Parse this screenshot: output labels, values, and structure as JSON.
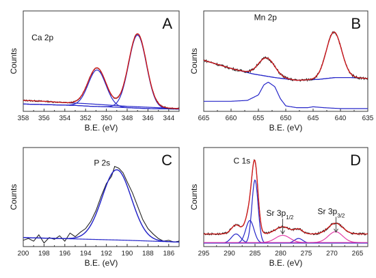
{
  "colors": {
    "exp": "#222222",
    "fit": "#d01a1a",
    "comp": "#2424c8",
    "pink": "#e23ca8",
    "axis": "#333333"
  },
  "chart_data": [
    {
      "type": "line",
      "letter": "A",
      "xlabel": "B.E. (eV)",
      "ylabel": "Counts",
      "xlim": [
        358,
        343
      ],
      "ylim": [
        0,
        1.1
      ],
      "xticks": [
        358,
        356,
        354,
        352,
        350,
        348,
        346,
        344
      ],
      "annotations": [
        {
          "text": "Ca 2p",
          "x": 357.2,
          "y": 0.78
        }
      ],
      "backgrounds": [
        {
          "color": "comp",
          "points": [
            [
              358,
              0.08
            ],
            [
              353,
              0.065
            ],
            [
              351.5,
              0.055
            ],
            [
              350,
              0.05
            ],
            [
              348,
              0.04
            ],
            [
              346,
              0.03
            ],
            [
              343,
              0.025
            ]
          ]
        },
        {
          "color": "comp",
          "points": [
            [
              358,
              0.12
            ],
            [
              356,
              0.11
            ],
            [
              354,
              0.095
            ],
            [
              352,
              0.085
            ],
            [
              350,
              0.07
            ],
            [
              348,
              0.055
            ],
            [
              346,
              0.045
            ],
            [
              344,
              0.035
            ],
            [
              343,
              0.03
            ]
          ]
        }
      ],
      "peaks": [
        {
          "center": 350.9,
          "height": 0.4,
          "width": 0.85,
          "color": "comp"
        },
        {
          "center": 347.0,
          "height": 0.8,
          "width": 0.85,
          "color": "comp"
        }
      ],
      "envelope": {
        "color": "fit",
        "components": "all",
        "bg": 1
      },
      "experimental": {
        "color": "exp",
        "noise": 0.008,
        "bg": 1
      }
    },
    {
      "type": "line",
      "letter": "B",
      "xlabel": "B.E. (eV)",
      "ylabel": "Counts",
      "xlim": [
        665,
        635
      ],
      "ylim": [
        0,
        1.1
      ],
      "xticks": [
        665,
        660,
        655,
        650,
        645,
        640,
        635
      ],
      "annotations": [
        {
          "text": "Mn 2p",
          "x": 655.8,
          "y": 1.0
        }
      ],
      "backgrounds": [
        {
          "color": "comp",
          "points": [
            [
              665,
              0.56
            ],
            [
              660,
              0.47
            ],
            [
              656,
              0.41
            ],
            [
              652,
              0.37
            ],
            [
              648,
              0.34
            ],
            [
              644,
              0.35
            ],
            [
              641,
              0.37
            ],
            [
              638,
              0.37
            ],
            [
              635,
              0.36
            ]
          ]
        }
      ],
      "peaks": [
        {
          "center": 653.5,
          "height": 0.2,
          "width": 1.5,
          "color": "comp"
        },
        {
          "center": 641.2,
          "height": 0.5,
          "width": 1.4,
          "color": "comp"
        }
      ],
      "extra_curves": [
        {
          "color": "comp",
          "points": [
            [
              665,
              0.11
            ],
            [
              660,
              0.11
            ],
            [
              657,
              0.12
            ],
            [
              655,
              0.18
            ],
            [
              654,
              0.29
            ],
            [
              653.2,
              0.32
            ],
            [
              652,
              0.27
            ],
            [
              651,
              0.14
            ],
            [
              650,
              0.06
            ],
            [
              648,
              0.04
            ],
            [
              646,
              0.04
            ],
            [
              645,
              0.05
            ],
            [
              643,
              0.04
            ],
            [
              640,
              0.03
            ],
            [
              635,
              0.03
            ]
          ]
        }
      ],
      "envelope": {
        "color": "fit",
        "components": "all",
        "bg": 0
      },
      "experimental": {
        "color": "exp",
        "noise": 0.014,
        "bg": 0
      }
    },
    {
      "type": "line",
      "letter": "C",
      "xlabel": "B.E. (eV)",
      "ylabel": "Counts",
      "xlim": [
        200,
        185
      ],
      "ylim": [
        0,
        1.1
      ],
      "xticks": [
        200,
        198,
        196,
        194,
        192,
        190,
        188,
        186
      ],
      "annotations": [
        {
          "text": "P 2s",
          "x": 193.2,
          "y": 0.9
        }
      ],
      "backgrounds": [
        {
          "color": "comp",
          "points": [
            [
              200,
              0.1
            ],
            [
              195,
              0.085
            ],
            [
              190,
              0.07
            ],
            [
              185,
              0.05
            ]
          ]
        }
      ],
      "peaks": [
        {
          "center": 191.0,
          "height": 0.78,
          "width": 1.4,
          "color": "comp"
        }
      ],
      "envelope": {
        "color": "comp",
        "components": "all",
        "bg": 0
      },
      "experimental": {
        "color": "exp",
        "points": [
          [
            200,
            0.07
          ],
          [
            199.5,
            0.09
          ],
          [
            199,
            0.06
          ],
          [
            198.5,
            0.13
          ],
          [
            198,
            0.04
          ],
          [
            197.5,
            0.1
          ],
          [
            197,
            0.08
          ],
          [
            196.5,
            0.12
          ],
          [
            196,
            0.06
          ],
          [
            195.5,
            0.15
          ],
          [
            195,
            0.11
          ],
          [
            194.5,
            0.16
          ],
          [
            194,
            0.2
          ],
          [
            193.5,
            0.28
          ],
          [
            193,
            0.4
          ],
          [
            192.5,
            0.56
          ],
          [
            192,
            0.7
          ],
          [
            191.5,
            0.78
          ],
          [
            191.2,
            0.89
          ],
          [
            190.8,
            0.87
          ],
          [
            190.4,
            0.82
          ],
          [
            190,
            0.72
          ],
          [
            189.5,
            0.6
          ],
          [
            189,
            0.45
          ],
          [
            188.5,
            0.3
          ],
          [
            188,
            0.2
          ],
          [
            187.5,
            0.14
          ],
          [
            187,
            0.09
          ],
          [
            186.5,
            0.06
          ],
          [
            186,
            0.07
          ],
          [
            185.5,
            0.05
          ],
          [
            185,
            0.06
          ]
        ]
      }
    },
    {
      "type": "line",
      "letter": "D",
      "xlabel": "B.E. (eV)",
      "ylabel": "Counts",
      "xlim": [
        295,
        263
      ],
      "ylim": [
        0,
        1.1
      ],
      "xticks": [
        295,
        290,
        285,
        280,
        275,
        270,
        265
      ],
      "annotations": [
        {
          "text": "C 1s",
          "x": 289.2,
          "y": 0.92
        },
        {
          "text": "Sr 3p",
          "sub": "1/2",
          "x": 282.8,
          "y": 0.34,
          "arrow_to": [
            279.6,
            0.14
          ]
        },
        {
          "text": "Sr 3p",
          "sub": "3/2",
          "x": 272.8,
          "y": 0.36,
          "arrow_to": [
            269.2,
            0.16
          ]
        }
      ],
      "backgrounds": [
        {
          "color": "comp",
          "points": [
            [
              295,
              0.04
            ],
            [
              263,
              0.04
            ]
          ]
        },
        {
          "color": "pink",
          "points": [
            [
              295,
              0.045
            ],
            [
              263,
              0.045
            ]
          ]
        }
      ],
      "peaks": [
        {
          "center": 285.0,
          "height": 0.7,
          "width": 0.6,
          "color": "comp"
        },
        {
          "center": 286.0,
          "height": 0.25,
          "width": 0.8,
          "color": "comp"
        },
        {
          "center": 288.7,
          "height": 0.1,
          "width": 0.9,
          "color": "comp"
        },
        {
          "center": 276.5,
          "height": 0.05,
          "width": 0.8,
          "color": "comp"
        },
        {
          "center": 279.6,
          "height": 0.08,
          "width": 1.4,
          "color": "pink"
        },
        {
          "center": 269.3,
          "height": 0.12,
          "width": 1.4,
          "color": "pink"
        }
      ],
      "envelope": {
        "color": "fit",
        "components": "all",
        "bg": 0,
        "offset": 0.1
      },
      "experimental": {
        "color": "exp",
        "noise": 0.012,
        "bg": 0,
        "offset": 0.1
      }
    }
  ]
}
